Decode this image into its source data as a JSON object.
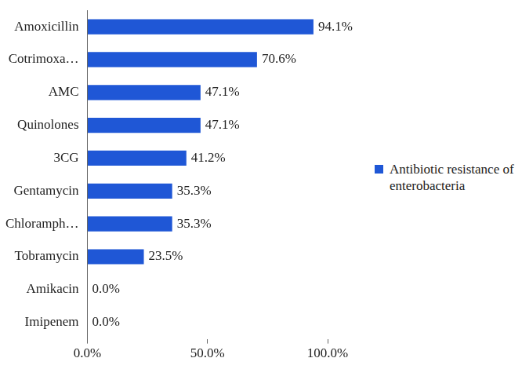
{
  "chart_data": {
    "type": "bar",
    "orientation": "horizontal",
    "categories": [
      "Amoxicillin",
      "Cotrimoxa…",
      "AMC",
      "Quinolones",
      "3CG",
      "Gentamycin",
      "Chloramph…",
      "Tobramycin",
      "Amikacin",
      "Imipenem"
    ],
    "series": [
      {
        "name": "Antibiotic resistance of enterobacteria",
        "color": "#1f57d6",
        "values": [
          94.1,
          70.6,
          47.1,
          47.1,
          41.2,
          35.3,
          35.3,
          23.5,
          0.0,
          0.0
        ],
        "value_labels": [
          "94.1%",
          "70.6%",
          "47.1%",
          "47.1%",
          "41.2%",
          "35.3%",
          "35.3%",
          "23.5%",
          "0.0%",
          "0.0%"
        ]
      }
    ],
    "xlim": [
      0,
      100
    ],
    "xticks": [
      {
        "value": 0,
        "label": "0.0%"
      },
      {
        "value": 50,
        "label": "50.0%"
      },
      {
        "value": 100,
        "label": "100.0%"
      }
    ],
    "grid": false,
    "legend": "right",
    "data_labels": true
  }
}
